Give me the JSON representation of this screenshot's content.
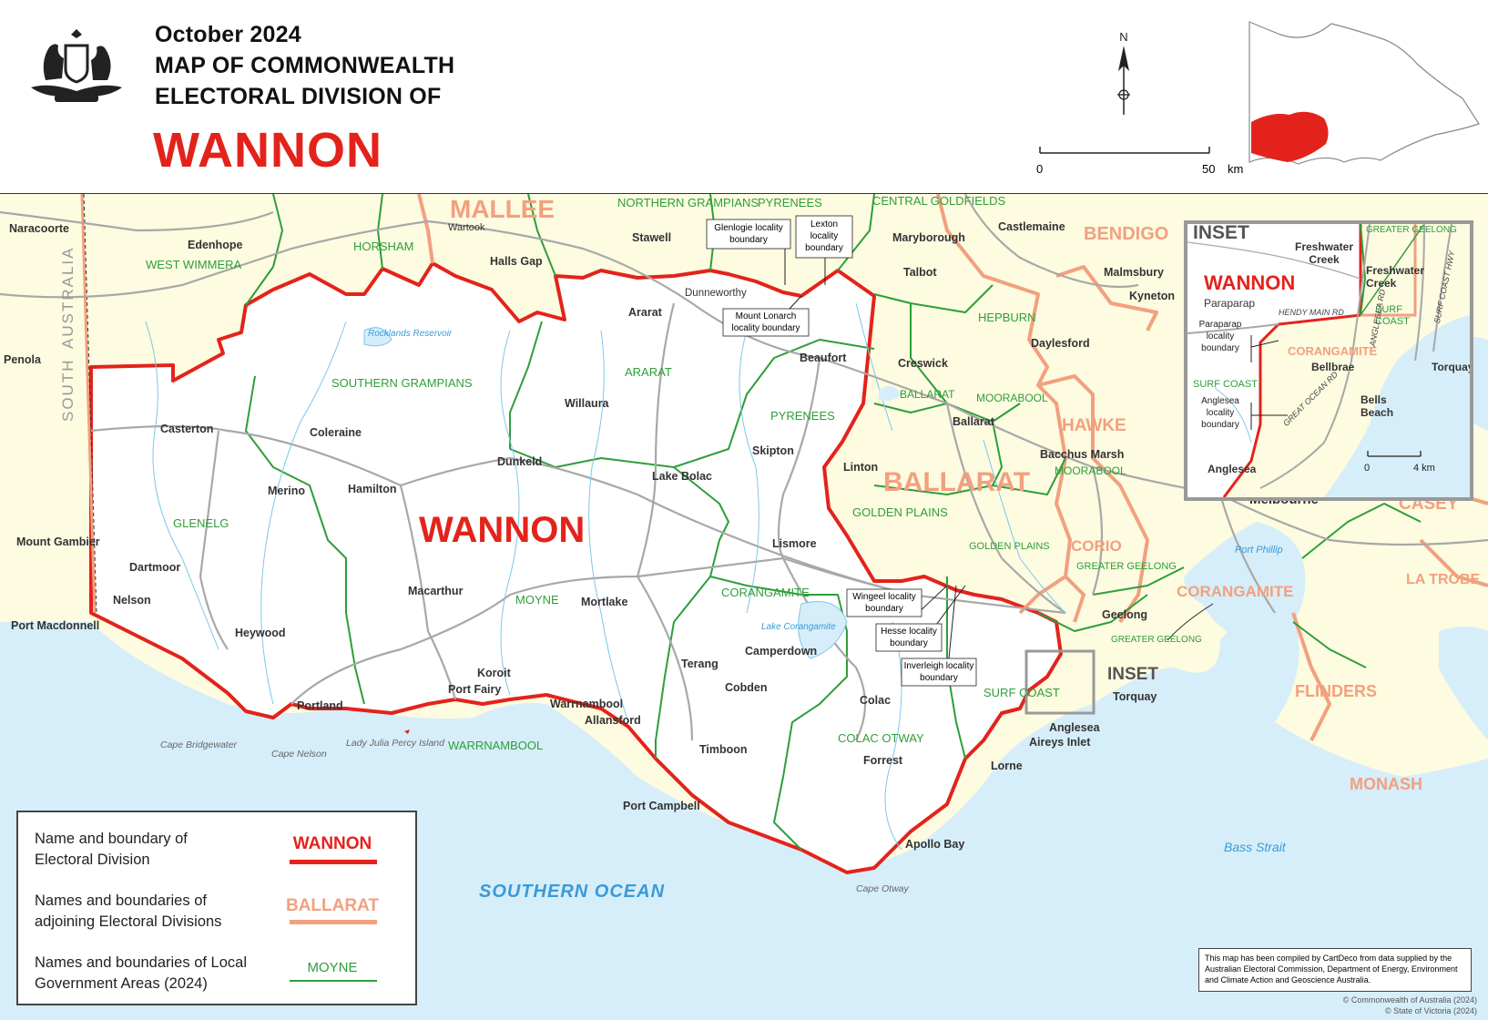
{
  "header": {
    "date": "October 2024",
    "title_line1": "MAP OF COMMONWEALTH",
    "title_line2": "ELECTORAL DIVISION OF",
    "division_name": "WANNON"
  },
  "north_label": "N",
  "scale": {
    "start": "0",
    "end": "50",
    "unit": "km"
  },
  "inset_scale": {
    "start": "0",
    "end": "4 km"
  },
  "colors": {
    "division": "#e3231b",
    "adjoining": "#f2a07f",
    "lga": "#2e9e3a",
    "land_outside": "#fdfbe0",
    "water": "#d6eef9"
  },
  "map_labels": {
    "division_big": "WANNON",
    "adjoining": [
      "MALLEE",
      "BENDIGO",
      "BALLARAT",
      "HAWKE",
      "CORIO",
      "CORANGAMITE",
      "CASEY",
      "LA TROBE",
      "FLINDERS",
      "MONASH"
    ],
    "lga": [
      "WEST WIMMERA",
      "HORSHAM",
      "NORTHERN GRAMPIANS",
      "PYRENEES",
      "CENTRAL GOLDFIELDS",
      "SOUTHERN GRAMPIANS",
      "ARARAT",
      "PYRENEES",
      "GLENELG",
      "MOYNE",
      "CORANGAMITE",
      "HEPBURN",
      "BALLARAT",
      "MOORABOOL",
      "MOORABOOL",
      "GOLDEN PLAINS",
      "GOLDEN PLAINS",
      "GREATER GEELONG",
      "GREATER GEELONG",
      "SURF COAST",
      "COLAC OTWAY",
      "WARRNAMBOOL"
    ],
    "towns": [
      "Naracoorte",
      "Edenhope",
      "Wartook",
      "Halls Gap",
      "Stawell",
      "Castlemaine",
      "Maryborough",
      "Talbot",
      "Malmsbury",
      "Kyneton",
      "Penola",
      "Casterton",
      "Coleraine",
      "Ararat",
      "Dunneworthy",
      "Beaufort",
      "Creswick",
      "Daylesford",
      "Ballarat",
      "Bacchus Marsh",
      "Willaura",
      "Skipton",
      "Linton",
      "Merino",
      "Hamilton",
      "Dunkeld",
      "Lake Bolac",
      "Mount Gambier",
      "Dartmoor",
      "Lismore",
      "Nelson",
      "Macarthur",
      "Mortlake",
      "Heywood",
      "Port Macdonnell",
      "Camperdown",
      "Terang",
      "Koroit",
      "Port Fairy",
      "Cobden",
      "Colac",
      "Portland",
      "Warrnambool",
      "Allansford",
      "Timboon",
      "Forrest",
      "Port Campbell",
      "Apollo Bay",
      "Lorne",
      "Anglesea",
      "Aireys Inlet",
      "Torquay",
      "Geelong",
      "Melbourne"
    ],
    "water": [
      "SOUTHERN OCEAN",
      "Bass Strait",
      "Port Phillip",
      "Rocklands Reservoir",
      "Lake Corangamite"
    ],
    "features": [
      "Cape Bridgewater",
      "Cape Nelson",
      "Lady Julia Percy Island",
      "Cape Otway"
    ],
    "state": [
      "SOUTH",
      "AUSTRALIA"
    ],
    "callouts": [
      "Glenlogie locality boundary",
      "Lexton locality boundary",
      "Mount Lonarch locality boundary",
      "Wingeel locality boundary",
      "Hesse locality boundary",
      "Inverleigh locality boundary"
    ],
    "inset_marker": "INSET"
  },
  "inset": {
    "title": "INSET",
    "division": "WANNON",
    "adjoining": "CORANGAMITE",
    "lga": [
      "GREATER GEELONG",
      "SURF COAST",
      "SURF COAST"
    ],
    "places": [
      "Freshwater Creek",
      "Freshwater Creek",
      "Paraparap",
      "Bellbrae",
      "Torquay",
      "Bells Beach",
      "Anglesea"
    ],
    "roads": [
      "HENDY MAIN RD",
      "ANGLESEA RD",
      "SURF COAST HWY",
      "GREAT OCEAN RD"
    ],
    "callouts": [
      "Paraparap locality boundary",
      "Anglesea locality boundary"
    ]
  },
  "legend": {
    "row1": "Name and boundary of Electoral Division",
    "row1_sample": "WANNON",
    "row2": "Names and boundaries of adjoining Electoral Divisions",
    "row2_sample": "BALLARAT",
    "row3": "Names and boundaries of Local Government Areas (2024)",
    "row3_sample": "MOYNE"
  },
  "note": "This map has been compiled by CartDeco from data supplied by the Australian Electoral Commission, Department of Energy, Environment and Climate Action and Geoscience Australia.",
  "copyright": [
    "© Commonwealth of Australia (2024)",
    "© State of Victoria (2024)"
  ]
}
